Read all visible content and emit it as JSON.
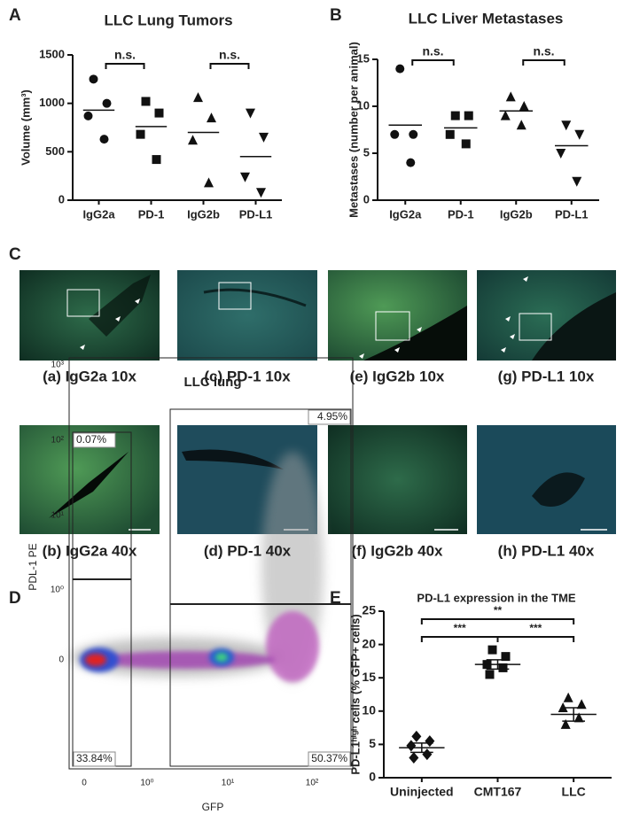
{
  "panel_labels": [
    "A",
    "B",
    "C",
    "D",
    "E"
  ],
  "chart_data": [
    {
      "type": "scatter",
      "title": "LLC Lung Tumors",
      "y_label": "Volume (mm³)",
      "categories": [
        "IgG2a",
        "PD-1",
        "IgG2b",
        "PD-L1"
      ],
      "markers": [
        "circle",
        "square",
        "triangle",
        "triangle-down"
      ],
      "values": [
        [
          1250,
          1000,
          870,
          630
        ],
        [
          1020,
          900,
          680,
          420
        ],
        [
          1060,
          850,
          620,
          180
        ],
        [
          900,
          650,
          240,
          80
        ]
      ],
      "means": [
        930,
        760,
        700,
        450
      ],
      "ylim": [
        0,
        1500
      ],
      "yticks": [
        0,
        500,
        1000,
        1500
      ],
      "annotations": [
        {
          "text": "n.s.",
          "from": 0,
          "to": 1
        },
        {
          "text": "n.s.",
          "from": 2,
          "to": 3
        }
      ]
    },
    {
      "type": "scatter",
      "title": "LLC Liver Metastases",
      "y_label": "Metastases (number per animal)",
      "categories": [
        "IgG2a",
        "PD-1",
        "IgG2b",
        "PD-L1"
      ],
      "markers": [
        "circle",
        "square",
        "triangle",
        "triangle-down"
      ],
      "values": [
        [
          14,
          7,
          7,
          4
        ],
        [
          9,
          9,
          7,
          6
        ],
        [
          11,
          10,
          9,
          8
        ],
        [
          8,
          7,
          5,
          2
        ]
      ],
      "means": [
        8,
        7.7,
        9.5,
        5.8
      ],
      "ylim": [
        0,
        15
      ],
      "yticks": [
        0,
        5,
        10,
        15
      ],
      "annotations": [
        {
          "text": "n.s.",
          "from": 0,
          "to": 1
        },
        {
          "text": "n.s.",
          "from": 2,
          "to": 3
        }
      ]
    },
    {
      "type": "scatter",
      "title": "PD-L1 expression in the TME",
      "y_label": "PD-L1ʰⁱᵍʰ cells (% GFP+ cells)",
      "categories": [
        "Uninjected",
        "CMT167",
        "LLC"
      ],
      "markers": [
        "diamond",
        "square",
        "triangle"
      ],
      "values": [
        [
          6.2,
          5.5,
          4.8,
          3.5,
          3.0
        ],
        [
          19.2,
          18.2,
          17,
          16.5,
          15.5
        ],
        [
          12,
          11,
          10.5,
          9,
          8
        ]
      ],
      "means": [
        4.5,
        17,
        9.5
      ],
      "sem": [
        0.7,
        0.7,
        1
      ],
      "ylim": [
        0,
        25
      ],
      "yticks": [
        0,
        5,
        10,
        15,
        20,
        25
      ],
      "annotations": [
        {
          "text": "***",
          "from": 0,
          "to": 1
        },
        {
          "text": "***",
          "from": 1,
          "to": 2
        },
        {
          "text": "**",
          "from": 0,
          "to": 2
        }
      ]
    }
  ],
  "micrographs": [
    "(a) IgG2a 10x",
    "(c) PD-1 10x",
    "(e) IgG2b 10x",
    "(g) PD-L1 10x",
    "(b) IgG2a 40x",
    "(d) PD-1 40x",
    "(f) IgG2b 40x",
    "(h) PD-L1 40x"
  ],
  "flow": {
    "title": "LLC lung",
    "x_label": "GFP",
    "y_label": "PDL-1 PE",
    "y_tick_labels": [
      "10³",
      "10²",
      "10¹",
      "10⁰",
      "0"
    ],
    "x_tick_labels": [
      "0",
      "10⁰",
      "10¹",
      "10²"
    ],
    "quadrants": [
      "0.07%",
      "4.95%",
      "33.84%",
      "50.37%"
    ]
  }
}
